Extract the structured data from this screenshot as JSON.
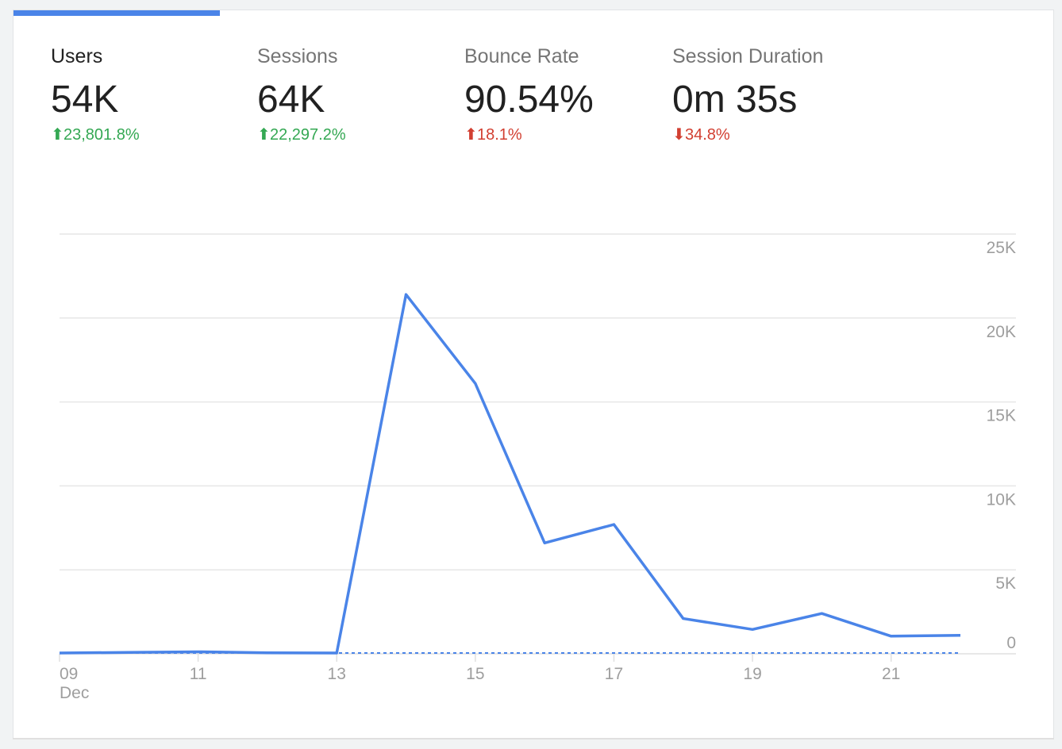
{
  "metrics": [
    {
      "label": "Users",
      "value": "54K",
      "delta": "23,801.8%",
      "direction": "up",
      "trend_color": "#34a853",
      "selected": true
    },
    {
      "label": "Sessions",
      "value": "64K",
      "delta": "22,297.2%",
      "direction": "up",
      "trend_color": "#34a853",
      "selected": false
    },
    {
      "label": "Bounce Rate",
      "value": "90.54%",
      "delta": "18.1%",
      "direction": "up",
      "trend_color": "#d23f31",
      "selected": false
    },
    {
      "label": "Session Duration",
      "value": "0m 35s",
      "delta": "34.8%",
      "direction": "down",
      "trend_color": "#d23f31",
      "selected": false
    }
  ],
  "colors": {
    "accent": "#4a84e8",
    "positive": "#34a853",
    "negative": "#d23f31"
  },
  "chart_data": {
    "type": "line",
    "x": [
      9,
      10,
      11,
      12,
      13,
      14,
      15,
      16,
      17,
      18,
      19,
      20,
      21,
      22
    ],
    "values": [
      50,
      80,
      120,
      60,
      50,
      21400,
      16100,
      6600,
      7700,
      2100,
      1450,
      2400,
      1050,
      1100
    ],
    "comparison_values": [
      50,
      50,
      50,
      50,
      50,
      50,
      50,
      50,
      50,
      50,
      50,
      50,
      50,
      50
    ],
    "x_tick_labels": [
      "09",
      "11",
      "13",
      "15",
      "17",
      "19",
      "21"
    ],
    "x_tick_values": [
      9,
      11,
      13,
      15,
      17,
      19,
      21
    ],
    "x_sublabel": "Dec",
    "y_tick_labels": [
      "0",
      "5K",
      "10K",
      "15K",
      "20K",
      "25K"
    ],
    "y_tick_values": [
      0,
      5000,
      10000,
      15000,
      20000,
      25000
    ],
    "ylim": [
      0,
      25000
    ],
    "xlim": [
      9,
      22
    ],
    "y_axis_side": "right",
    "grid": true,
    "line_color": "#4a84e8"
  }
}
